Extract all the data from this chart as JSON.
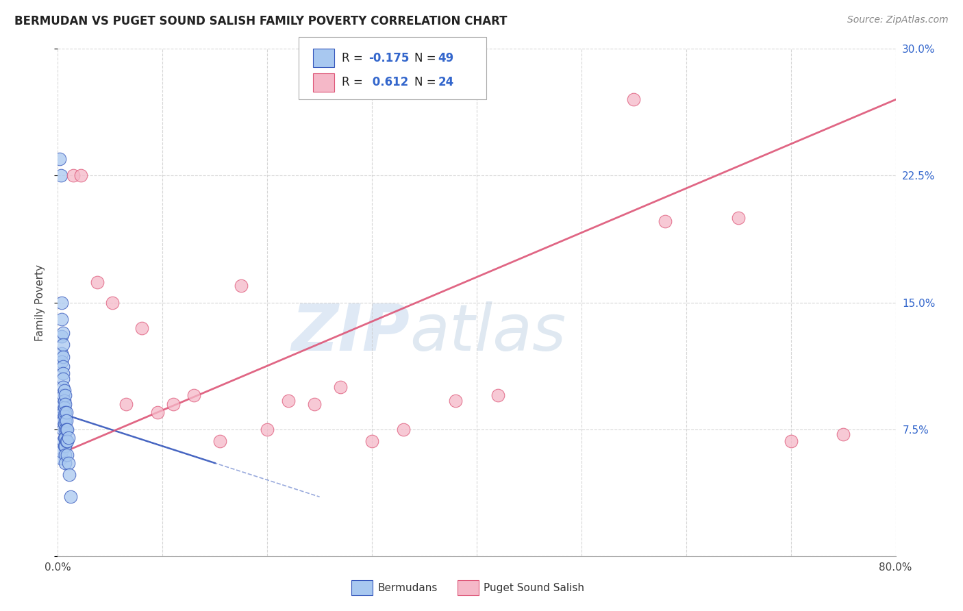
{
  "title": "BERMUDAN VS PUGET SOUND SALISH FAMILY POVERTY CORRELATION CHART",
  "source": "Source: ZipAtlas.com",
  "ylabel": "Family Poverty",
  "legend_label1": "Bermudans",
  "legend_label2": "Puget Sound Salish",
  "r1": -0.175,
  "n1": 49,
  "r2": 0.612,
  "n2": 24,
  "xlim": [
    0,
    0.8
  ],
  "ylim": [
    0,
    0.3
  ],
  "xtick_pos": [
    0.0,
    0.1,
    0.2,
    0.3,
    0.4,
    0.5,
    0.6,
    0.7,
    0.8
  ],
  "xtick_labels": [
    "0.0%",
    "",
    "",
    "",
    "",
    "",
    "",
    "",
    "80.0%"
  ],
  "ytick_positions": [
    0.0,
    0.075,
    0.15,
    0.225,
    0.3
  ],
  "ytick_labels": [
    "",
    "7.5%",
    "15.0%",
    "22.5%",
    "30.0%"
  ],
  "color_blue": "#a8c8f0",
  "color_pink": "#f5b8c8",
  "line_blue": "#3355bb",
  "line_pink": "#dd5577",
  "watermark_zip": "ZIP",
  "watermark_atlas": "atlas",
  "bermudans_x": [
    0.002,
    0.003,
    0.003,
    0.004,
    0.004,
    0.004,
    0.004,
    0.004,
    0.004,
    0.005,
    0.005,
    0.005,
    0.005,
    0.005,
    0.005,
    0.005,
    0.005,
    0.005,
    0.005,
    0.005,
    0.005,
    0.005,
    0.006,
    0.006,
    0.006,
    0.006,
    0.006,
    0.006,
    0.006,
    0.007,
    0.007,
    0.007,
    0.007,
    0.007,
    0.007,
    0.007,
    0.007,
    0.007,
    0.008,
    0.008,
    0.008,
    0.008,
    0.009,
    0.009,
    0.009,
    0.01,
    0.01,
    0.011,
    0.012
  ],
  "bermudans_y": [
    0.235,
    0.225,
    0.058,
    0.15,
    0.14,
    0.13,
    0.12,
    0.115,
    0.062,
    0.132,
    0.125,
    0.118,
    0.112,
    0.108,
    0.105,
    0.1,
    0.095,
    0.09,
    0.085,
    0.08,
    0.075,
    0.068,
    0.098,
    0.092,
    0.088,
    0.083,
    0.078,
    0.07,
    0.065,
    0.095,
    0.09,
    0.085,
    0.08,
    0.075,
    0.07,
    0.065,
    0.06,
    0.055,
    0.085,
    0.08,
    0.075,
    0.068,
    0.075,
    0.068,
    0.06,
    0.07,
    0.055,
    0.048,
    0.035
  ],
  "salish_x": [
    0.015,
    0.022,
    0.038,
    0.052,
    0.065,
    0.08,
    0.095,
    0.11,
    0.13,
    0.155,
    0.175,
    0.2,
    0.22,
    0.245,
    0.27,
    0.3,
    0.33,
    0.38,
    0.42,
    0.55,
    0.58,
    0.65,
    0.7,
    0.75
  ],
  "salish_y": [
    0.225,
    0.225,
    0.162,
    0.15,
    0.09,
    0.135,
    0.085,
    0.09,
    0.095,
    0.068,
    0.16,
    0.075,
    0.092,
    0.09,
    0.1,
    0.068,
    0.075,
    0.092,
    0.095,
    0.27,
    0.198,
    0.2,
    0.068,
    0.072
  ],
  "blue_line_x": [
    0.0,
    0.15
  ],
  "blue_line_y": [
    0.085,
    0.055
  ],
  "pink_line_x": [
    0.0,
    0.8
  ],
  "pink_line_y": [
    0.06,
    0.27
  ]
}
